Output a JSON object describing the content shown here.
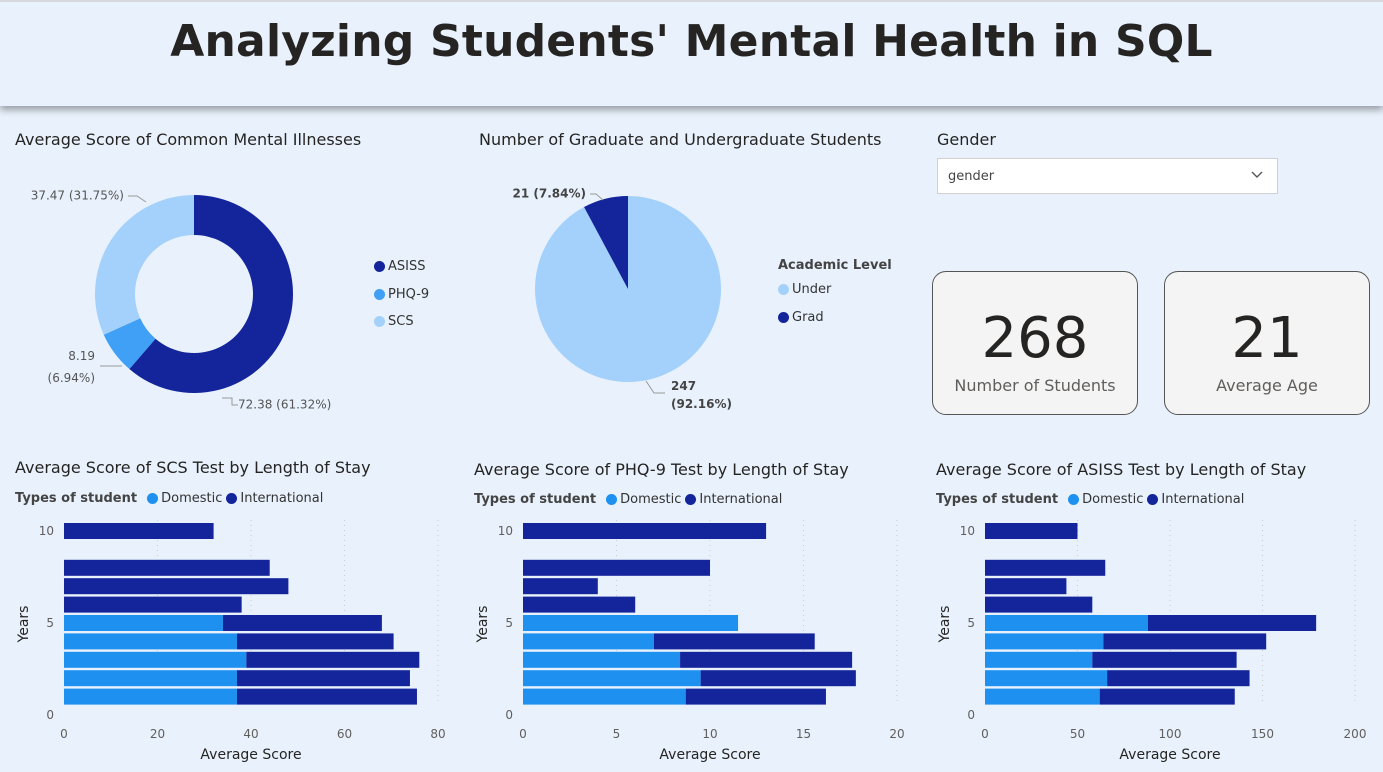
{
  "header": {
    "title": "Analyzing Students' Mental Health in SQL"
  },
  "colors": {
    "dark": "#14249b",
    "mid": "#3fa0f5",
    "light": "#a4d1fb",
    "domestic": "#1e90f0",
    "international": "#14249b"
  },
  "slicer": {
    "title": "Gender",
    "value": "gender"
  },
  "cards": [
    {
      "value": "268",
      "label": "Number of Students"
    },
    {
      "value": "21",
      "label": "Average Age"
    }
  ],
  "chart_data": [
    {
      "type": "pie",
      "title": "Average Score of Common Mental Illnesses",
      "donut": true,
      "legend": [
        "ASISS",
        "PHQ-9",
        "SCS"
      ],
      "slices": [
        {
          "name": "ASISS",
          "value": 72.38,
          "label": "72.38 (61.32%)"
        },
        {
          "name": "PHQ-9",
          "value": 8.19,
          "label": "8.19 (6.94%)"
        },
        {
          "name": "SCS",
          "value": 37.47,
          "label": "37.47 (31.75%)"
        }
      ]
    },
    {
      "type": "pie",
      "title": "Number of Graduate and Undergraduate Students",
      "legend_title": "Academic Level",
      "legend": [
        "Under",
        "Grad"
      ],
      "slices": [
        {
          "name": "Under",
          "value": 247,
          "label_value": "247",
          "label_pct": "(92.16%)"
        },
        {
          "name": "Grad",
          "value": 21,
          "label": "21 (7.84%)"
        }
      ]
    },
    {
      "type": "bar",
      "title": "Average Score of SCS Test by Length of Stay",
      "legend_title": "Types of student",
      "legend": [
        "Domestic",
        "International"
      ],
      "xlabel": "Average Score",
      "ylabel": "Years",
      "xlim": [
        0,
        80
      ],
      "xticks": [
        "0",
        "20",
        "40",
        "60",
        "80"
      ],
      "yticks": [
        "0",
        "5",
        "10"
      ],
      "stacked": true,
      "years": [
        1,
        2,
        3,
        4,
        5,
        6,
        7,
        8,
        10
      ],
      "series": [
        {
          "name": "Domestic",
          "values": [
            37,
            37,
            39,
            37,
            34,
            0,
            0,
            0,
            0
          ]
        },
        {
          "name": "International",
          "values": [
            38.5,
            37,
            37,
            33.5,
            34,
            38,
            48,
            44,
            32
          ]
        }
      ]
    },
    {
      "type": "bar",
      "title": "Average Score of PHQ-9 Test by Length of Stay",
      "legend_title": "Types of student",
      "legend": [
        "Domestic",
        "International"
      ],
      "xlabel": "Average Score",
      "ylabel": "Years",
      "xlim": [
        0,
        20
      ],
      "xticks": [
        "0",
        "5",
        "10",
        "15",
        "20"
      ],
      "yticks": [
        "0",
        "5",
        "10"
      ],
      "stacked": true,
      "years": [
        1,
        2,
        3,
        4,
        5,
        6,
        7,
        8,
        10
      ],
      "series": [
        {
          "name": "Domestic",
          "values": [
            8.7,
            9.5,
            8.4,
            7,
            11.5,
            0,
            0,
            0,
            0
          ]
        },
        {
          "name": "International",
          "values": [
            7.5,
            8.3,
            9.2,
            8.6,
            0,
            6,
            4,
            10,
            13
          ]
        }
      ]
    },
    {
      "type": "bar",
      "title": "Average Score of ASISS Test by Length of Stay",
      "legend_title": "Types of student",
      "legend": [
        "Domestic",
        "International"
      ],
      "xlabel": "Average Score",
      "ylabel": "Years",
      "xlim": [
        0,
        200
      ],
      "xticks": [
        "0",
        "50",
        "100",
        "150",
        "200"
      ],
      "yticks": [
        "0",
        "5",
        "10"
      ],
      "stacked": true,
      "years": [
        1,
        2,
        3,
        4,
        5,
        6,
        7,
        8,
        10
      ],
      "series": [
        {
          "name": "Domestic",
          "values": [
            62,
            66,
            58,
            64,
            88,
            0,
            0,
            0,
            0
          ]
        },
        {
          "name": "International",
          "values": [
            73,
            77,
            78,
            88,
            91,
            58,
            44,
            65,
            50
          ]
        }
      ]
    }
  ]
}
